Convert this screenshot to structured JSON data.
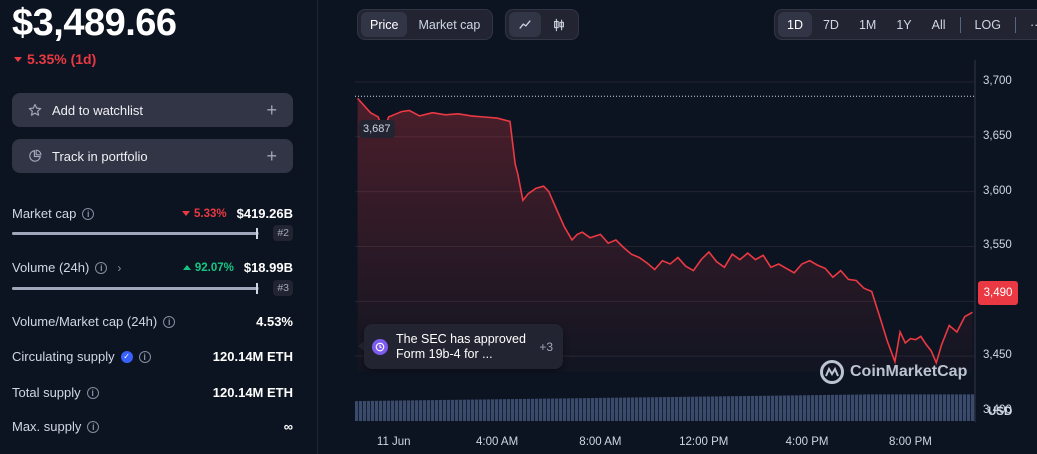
{
  "header": {
    "price": "$3,489.66",
    "change": "5.35% (1d)"
  },
  "actions": {
    "watchlist": "Add to watchlist",
    "portfolio": "Track in portfolio",
    "plus": "+"
  },
  "stats": {
    "market_cap": {
      "label": "Market cap",
      "pct": "5.33%",
      "value": "$419.26B",
      "rank": "#2",
      "bar_fill": 0.99
    },
    "volume": {
      "label": "Volume (24h)",
      "pct": "92.07%",
      "value": "$18.99B",
      "rank": "#3",
      "bar_fill": 0.99
    },
    "vol_mcap": {
      "label": "Volume/Market cap (24h)",
      "value": "4.53%"
    },
    "circulating": {
      "label": "Circulating supply",
      "value": "120.14M ETH"
    },
    "total": {
      "label": "Total supply",
      "value": "120.14M ETH"
    },
    "max": {
      "label": "Max. supply",
      "value": "∞"
    }
  },
  "controls": {
    "price_tab": "Price",
    "mcap_tab": "Market cap",
    "ranges": [
      "1D",
      "7D",
      "1M",
      "1Y",
      "All"
    ],
    "log": "LOG",
    "more": "···"
  },
  "chart_labels": {
    "high": "3,687",
    "current": "3,490",
    "currency": "USD",
    "watermark": "CoinMarketCap"
  },
  "news": {
    "text": "The SEC has approved Form 19b-4 for ...",
    "more": "+3"
  },
  "chart_data": {
    "type": "line",
    "title": "",
    "xlabel": "",
    "ylabel": "",
    "ylim": [
      3390,
      3720
    ],
    "yticks": [
      "3,700",
      "3,650",
      "3,600",
      "3,550",
      "3,500",
      "3,450",
      "3,400"
    ],
    "ytick_values": [
      3700,
      3650,
      3600,
      3550,
      3500,
      3450,
      3400
    ],
    "xticks": [
      "11 Jun",
      "4:00 AM",
      "8:00 AM",
      "12:00 PM",
      "4:00 PM",
      "8:00 PM"
    ],
    "xtick_hours": [
      0,
      4,
      8,
      12,
      16,
      20
    ],
    "x_hours_range": [
      -1.5,
      22.5
    ],
    "series": [
      {
        "hours": [
          -1.4,
          -0.9,
          -0.6,
          -0.4,
          -0.2,
          0.0,
          0.3,
          0.6,
          1.0,
          1.5,
          2.0,
          2.5,
          3.0,
          3.5,
          4.0,
          4.5,
          4.7,
          4.8,
          5.0,
          5.2,
          5.5,
          5.8,
          6.0,
          6.3,
          6.6,
          6.9,
          7.1,
          7.3,
          7.6,
          8.0,
          8.3,
          8.6,
          8.9,
          9.2,
          9.5,
          9.8,
          10.1,
          10.4,
          10.7,
          11.0,
          11.3,
          11.6,
          11.9,
          12.2,
          12.5,
          12.8,
          13.1,
          13.4,
          13.7,
          14.0,
          14.3,
          14.6,
          14.9,
          15.2,
          15.5,
          15.8,
          16.1,
          16.4,
          16.7,
          17.0,
          17.3,
          17.6,
          17.9,
          18.2,
          18.5,
          18.8,
          19.1,
          19.4,
          19.6,
          19.8,
          20.0,
          20.2,
          20.4,
          20.6,
          20.8,
          21.0,
          21.2,
          21.5,
          21.8,
          22.1,
          22.4
        ],
        "values": [
          3685,
          3672,
          3668,
          3653,
          3668,
          3670,
          3673,
          3674,
          3669,
          3672,
          3670,
          3671,
          3669,
          3668,
          3667,
          3664,
          3625,
          3616,
          3592,
          3598,
          3603,
          3605,
          3600,
          3584,
          3568,
          3556,
          3561,
          3563,
          3558,
          3561,
          3553,
          3556,
          3549,
          3543,
          3540,
          3535,
          3529,
          3537,
          3534,
          3540,
          3532,
          3528,
          3538,
          3545,
          3536,
          3531,
          3543,
          3538,
          3544,
          3538,
          3542,
          3531,
          3534,
          3530,
          3526,
          3534,
          3537,
          3533,
          3530,
          3522,
          3528,
          3520,
          3519,
          3512,
          3509,
          3487,
          3464,
          3445,
          3472,
          3462,
          3466,
          3465,
          3468,
          3461,
          3455,
          3444,
          3460,
          3478,
          3472,
          3486,
          3490
        ]
      }
    ],
    "volume": {
      "min": 0.55,
      "max": 0.95
    },
    "colors": {
      "line": "#ea3943",
      "grid": "#222531",
      "volume": "#3a4a6b"
    }
  }
}
